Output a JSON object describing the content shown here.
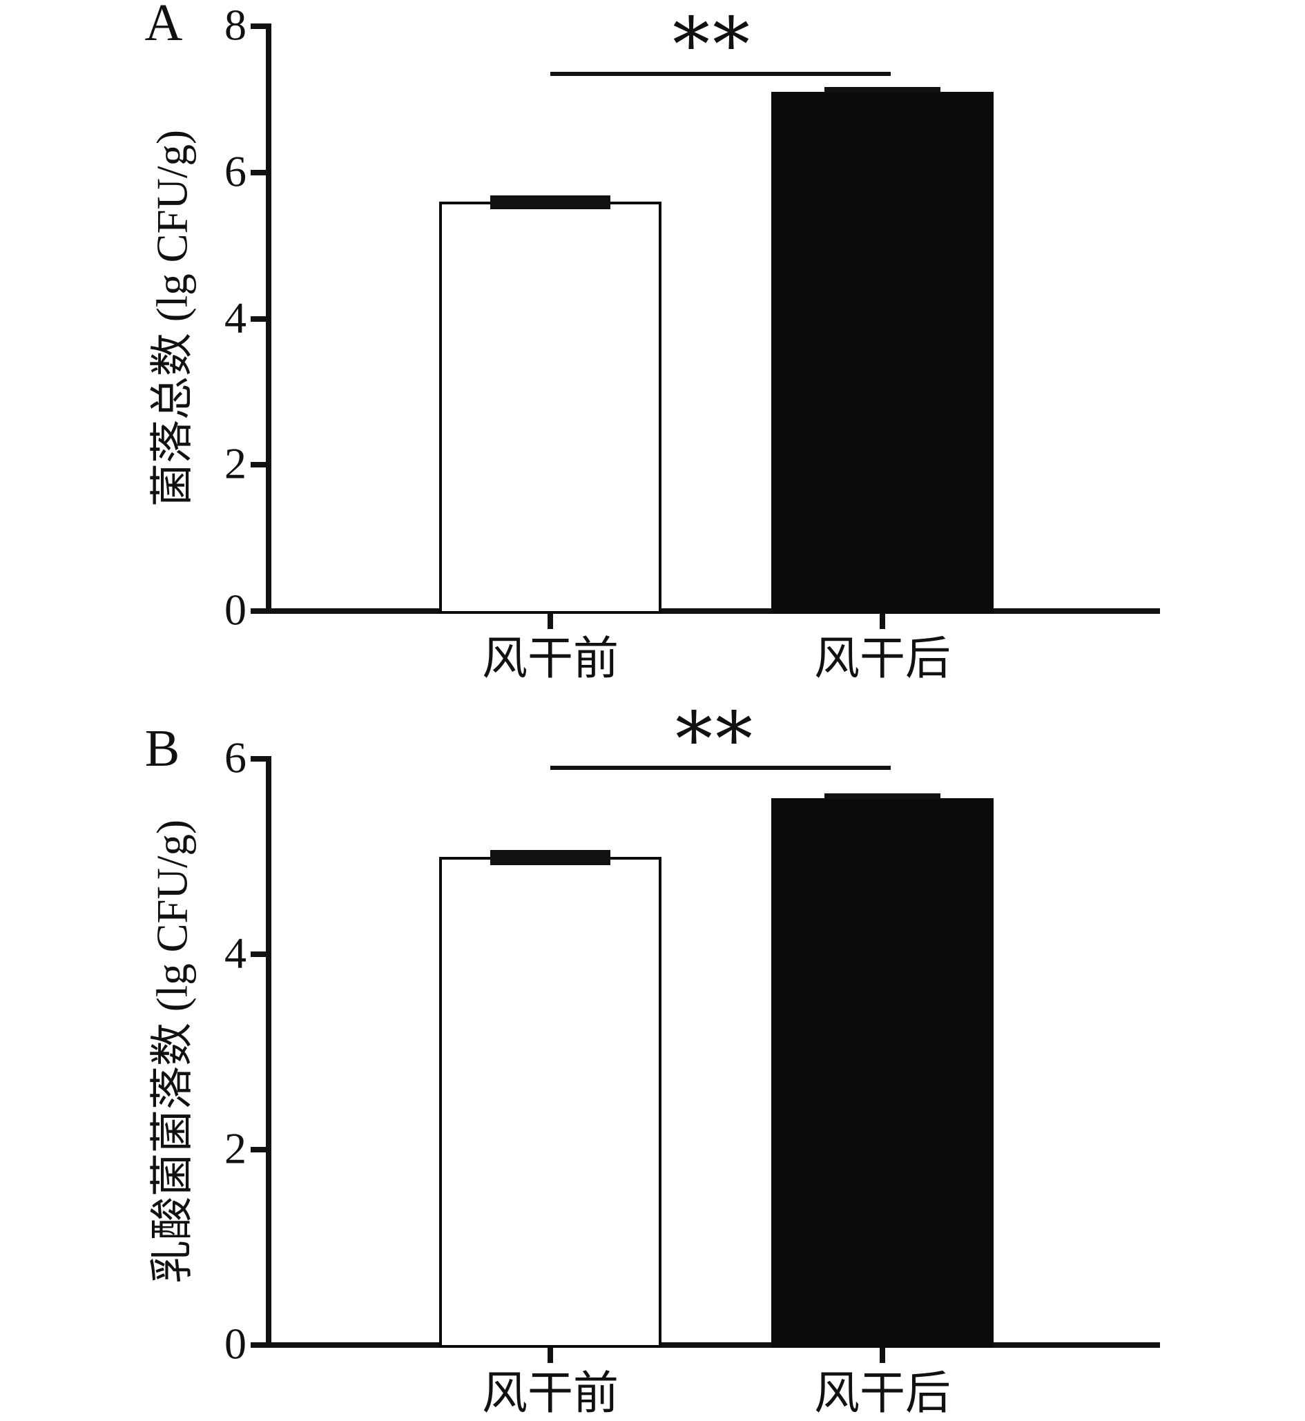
{
  "figure": {
    "background": "#ffffff",
    "ink_color": "#111111"
  },
  "chart_data": [
    {
      "type": "bar",
      "panel": "A",
      "title": "",
      "ylabel": "菌落总数 (lg CFU/g)",
      "categories": [
        "风干前",
        "风干后"
      ],
      "values": [
        5.6,
        7.1
      ],
      "errors": [
        0.09,
        0.06
      ],
      "ylim": [
        0,
        8
      ],
      "yticks": [
        0,
        2,
        4,
        6,
        8
      ],
      "grid": "off",
      "bar_fill": [
        "#ffffff",
        "#0b0b0b"
      ],
      "bar_border": "#0b0b0b",
      "significance": "**",
      "significance_between": [
        "风干前",
        "风干后"
      ]
    },
    {
      "type": "bar",
      "panel": "B",
      "title": "",
      "ylabel": "乳酸菌菌落数 (lg CFU/g)",
      "categories": [
        "风干前",
        "风干后"
      ],
      "values": [
        5.0,
        5.6
      ],
      "errors": [
        0.08,
        0.05
      ],
      "ylim": [
        0,
        6
      ],
      "yticks": [
        0,
        2,
        4,
        6
      ],
      "grid": "off",
      "bar_fill": [
        "#ffffff",
        "#0b0b0b"
      ],
      "bar_border": "#0b0b0b",
      "significance": "**",
      "significance_between": [
        "风干前",
        "风干后"
      ]
    }
  ]
}
